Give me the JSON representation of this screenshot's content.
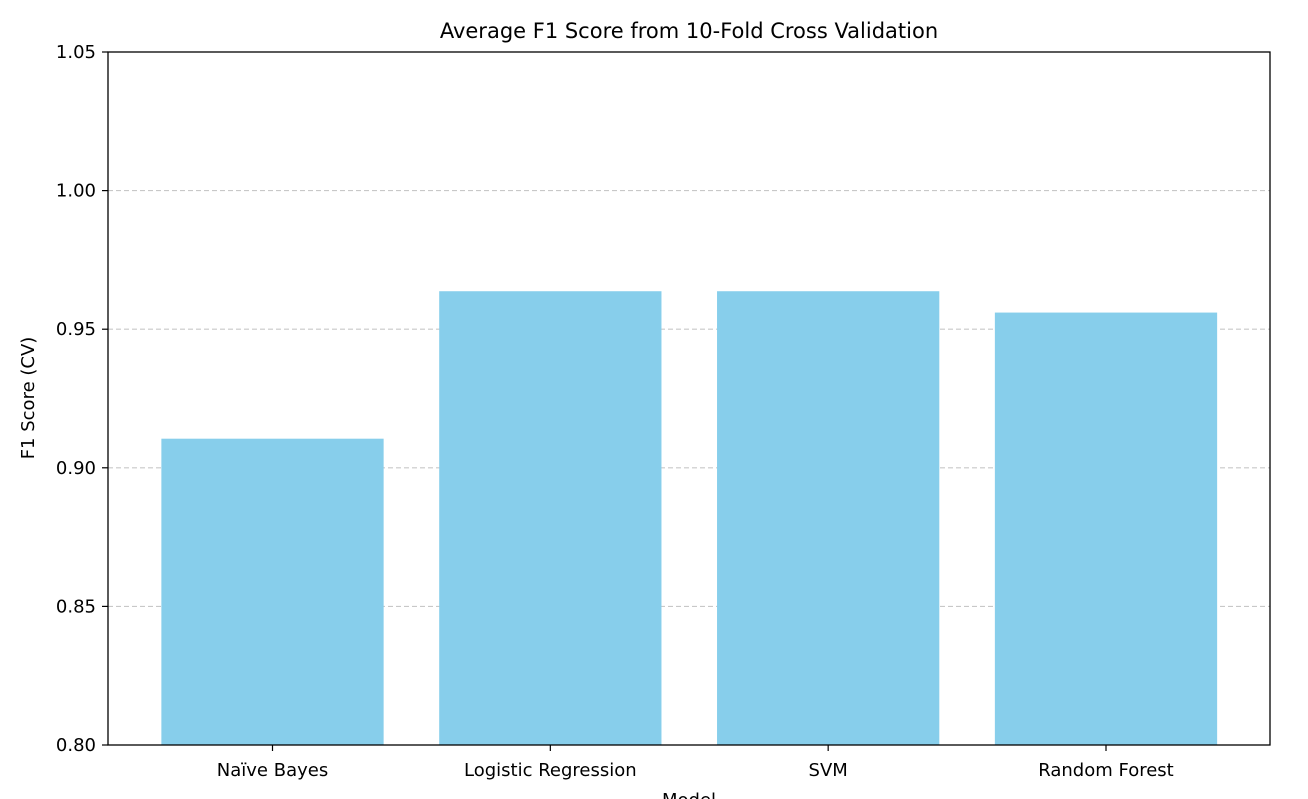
{
  "chart_data": {
    "type": "bar",
    "title": "Average F1 Score from 10-Fold Cross Validation",
    "xlabel": "Model",
    "ylabel": "F1 Score (CV)",
    "categories": [
      "Naïve Bayes",
      "Logistic Regression",
      "SVM",
      "Random Forest"
    ],
    "values": [
      0.9105,
      0.9637,
      0.9637,
      0.956
    ],
    "ylim": [
      0.8,
      1.05
    ],
    "yticks": [
      0.8,
      0.85,
      0.9,
      0.95,
      1.0,
      1.05
    ],
    "ytick_labels": [
      "0.80",
      "0.85",
      "0.90",
      "0.95",
      "1.00",
      "1.05"
    ],
    "grid": "y-axis dashed",
    "bar_color": "#87ceeb",
    "grid_color": "#c8c8c8"
  }
}
